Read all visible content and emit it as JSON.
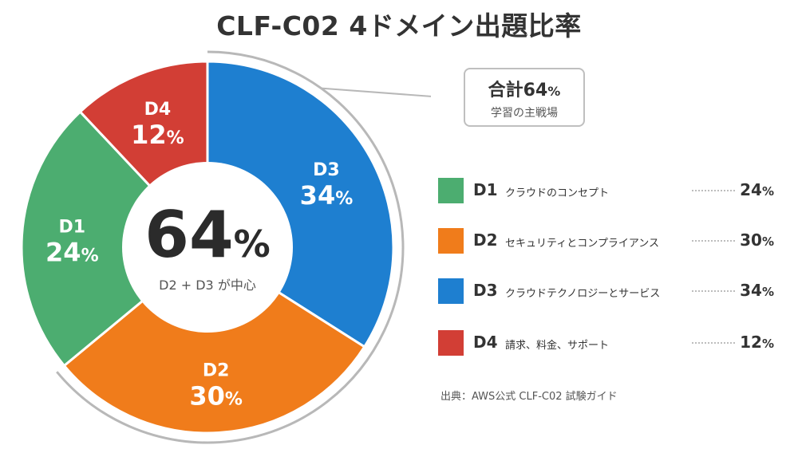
{
  "title": "CLF-C02 4ドメイン出題比率",
  "chart_data": {
    "type": "pie",
    "slices": [
      {
        "code": "D3",
        "label": "クラウドテクノロジーとサービス",
        "value": 34,
        "color": "#1e7fd0"
      },
      {
        "code": "D2",
        "label": "セキュリティとコンプライアンス",
        "value": 30,
        "color": "#f07c1b"
      },
      {
        "code": "D1",
        "label": "クラウドのコンセプト",
        "value": 24,
        "color": "#4cad70"
      },
      {
        "code": "D4",
        "label": "請求、料金、サポート",
        "value": 12,
        "color": "#d23e35"
      }
    ],
    "center": {
      "value": "64",
      "unit": "%",
      "caption": "D2 + D3 が中心"
    },
    "legend_position": "right"
  },
  "callout": {
    "main": "合計64",
    "unit": "%",
    "sub": "学習の主戦場"
  },
  "legend": [
    {
      "code": "D1",
      "name": "クラウドのコンセプト",
      "value": "24",
      "unit": "%",
      "color": "#4cad70"
    },
    {
      "code": "D2",
      "name": "セキュリティとコンプライアンス",
      "value": "30",
      "unit": "%",
      "color": "#f07c1b"
    },
    {
      "code": "D3",
      "name": "クラウドテクノロジーとサービス",
      "value": "34",
      "unit": "%",
      "color": "#1e7fd0"
    },
    {
      "code": "D4",
      "name": "請求、料金、サポート",
      "value": "12",
      "unit": "%",
      "color": "#d23e35"
    }
  ],
  "source": "出典：AWS公式 CLF-C02 試験ガイド"
}
